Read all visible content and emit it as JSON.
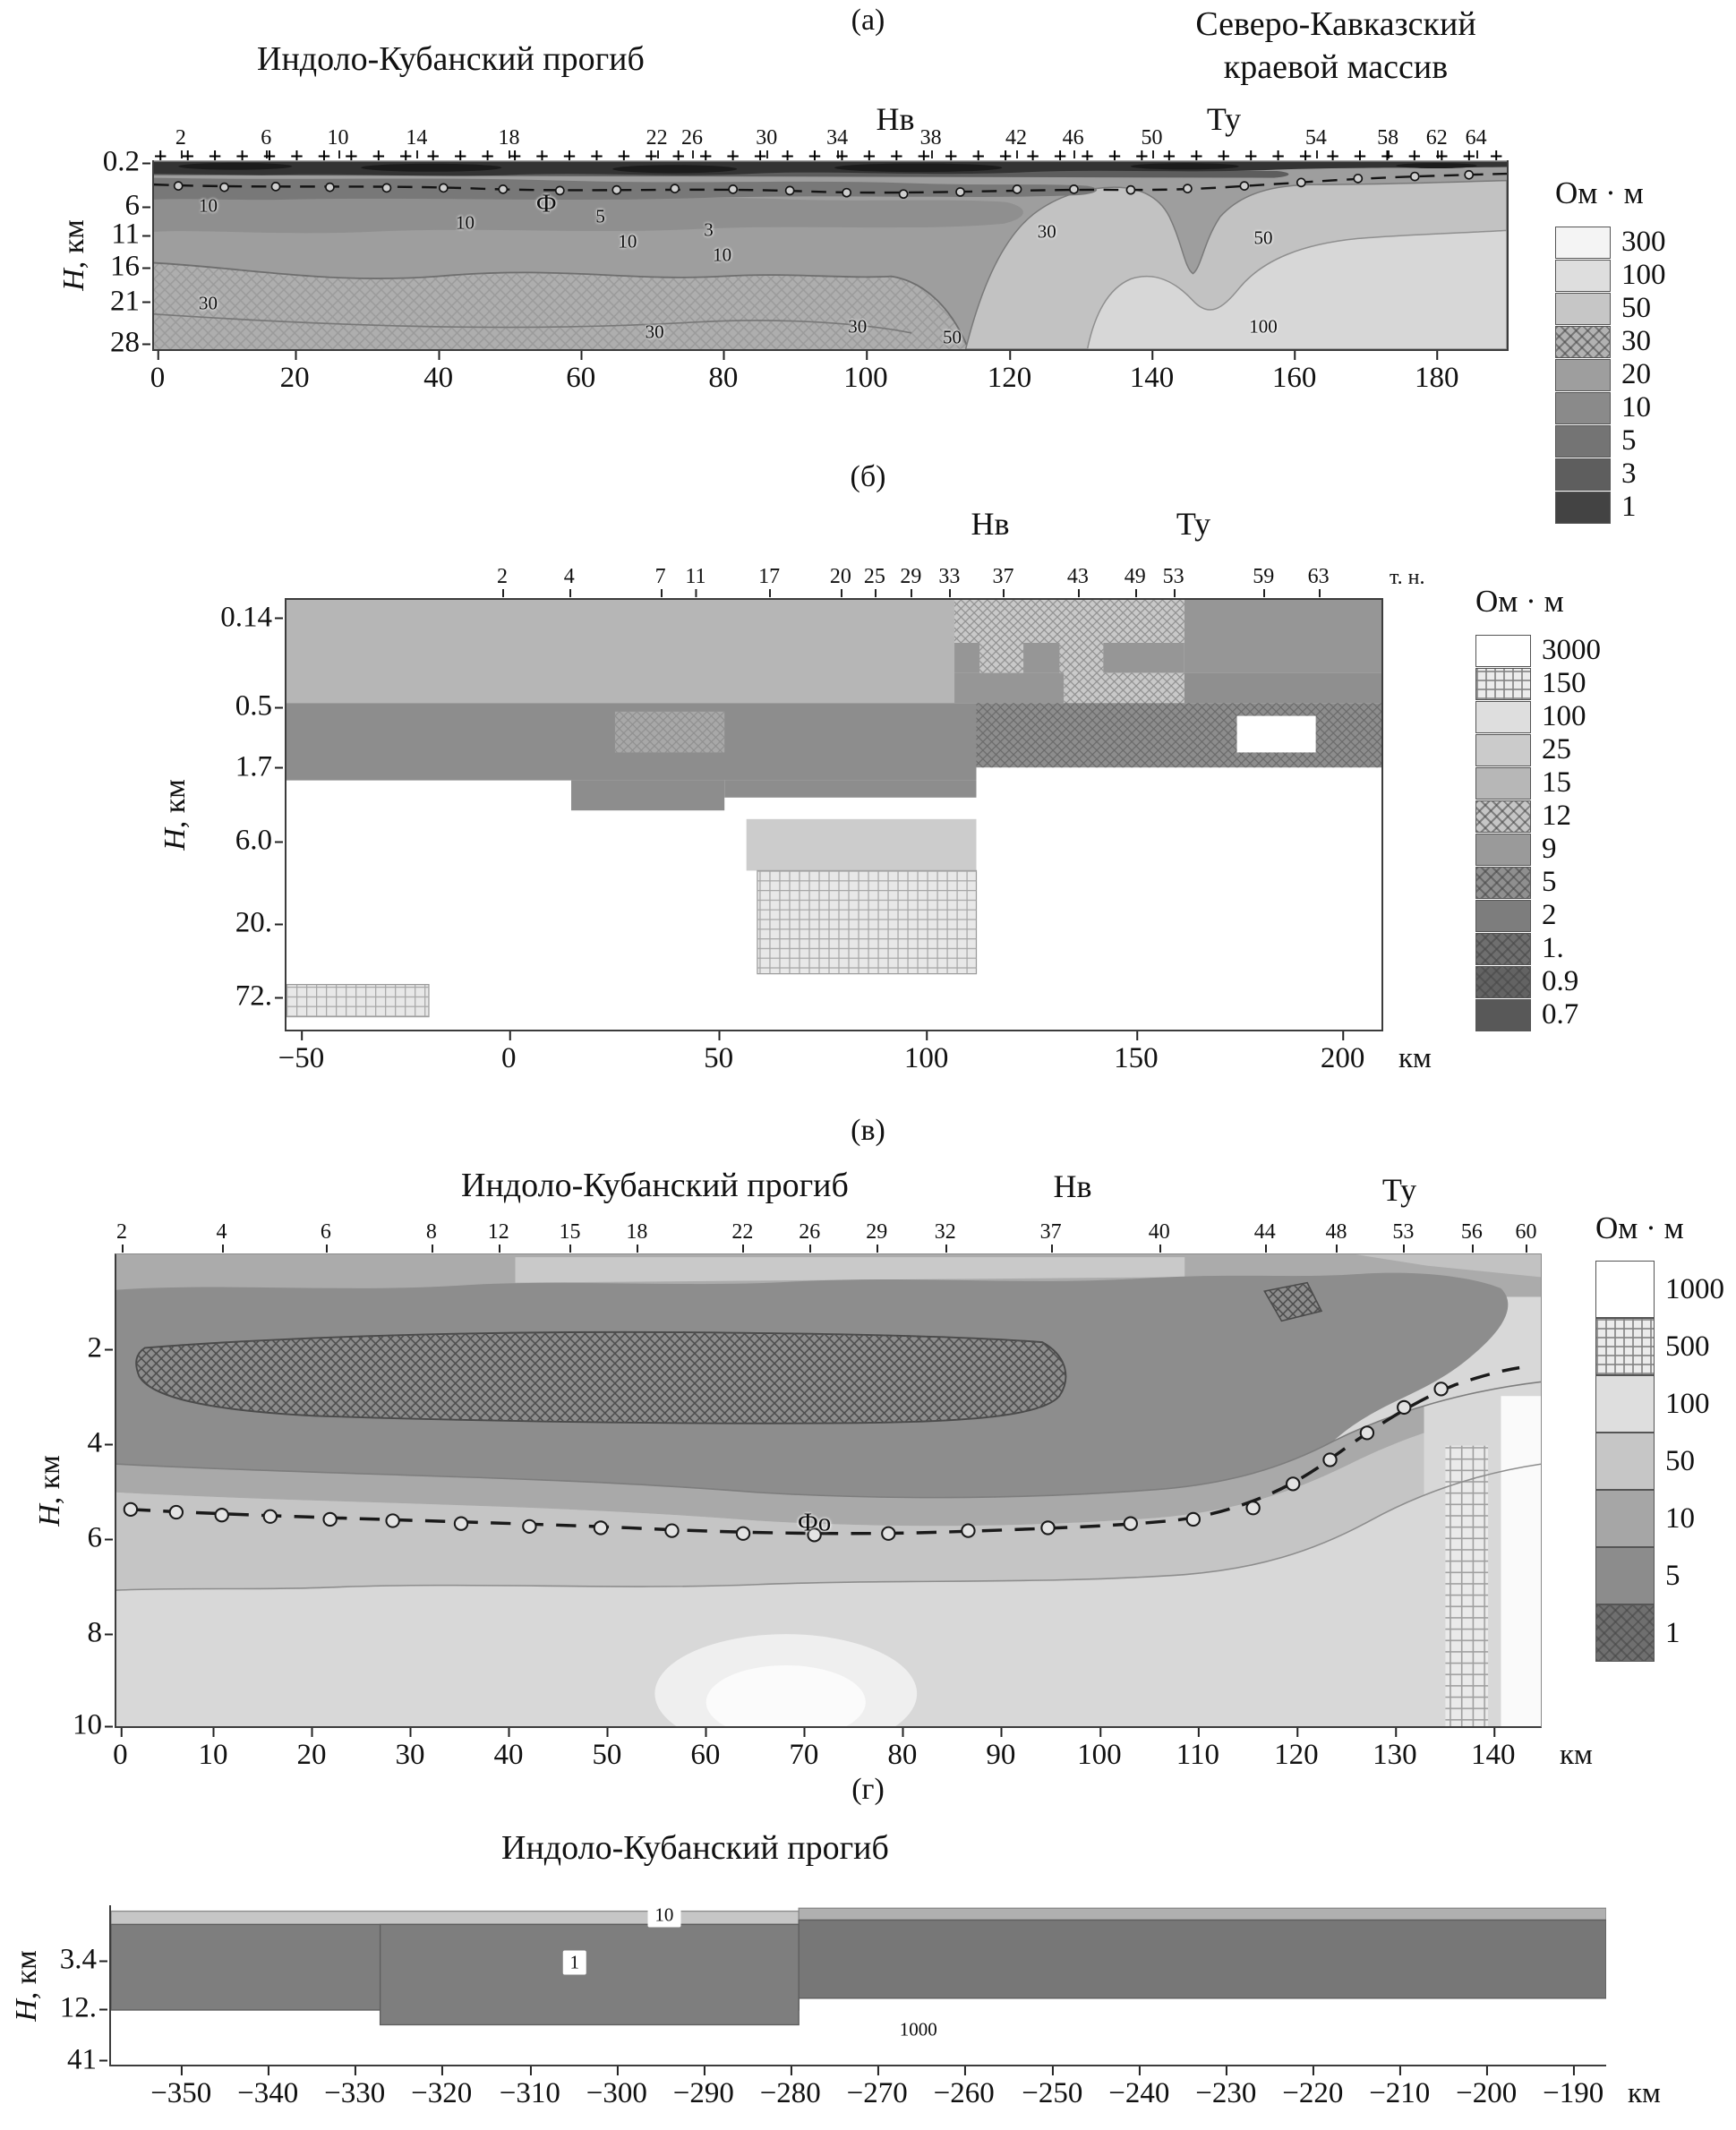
{
  "unit_label": "Ом · м",
  "chart_data": [
    {
      "id": "panel-a",
      "type": "heatmap",
      "tag": "(а)",
      "title_left": "Индоло-Кубанский прогиб",
      "title_right_l1": "Северо-Кавказский",
      "title_right_l2": "краевой массив",
      "marker_nv": "Нв",
      "marker_tu": "Ту",
      "ylabel_h": "H",
      "ylabel_unit": ", км",
      "legend_title": "Ом · м",
      "xlim_km": [
        0,
        190
      ],
      "ylim_km": [
        0.2,
        28
      ],
      "plus_row": "++++++++++++++++++++++++++++++++++++++++++++++++++++++++++++",
      "yticks": [
        {
          "label": "0.2",
          "pos": 1
        },
        {
          "label": "6",
          "pos": 24
        },
        {
          "label": "11",
          "pos": 39
        },
        {
          "label": "16",
          "pos": 56
        },
        {
          "label": "21",
          "pos": 74
        },
        {
          "label": "28",
          "pos": 96
        }
      ],
      "xticks": [
        {
          "label": "0",
          "pos": 0.4
        },
        {
          "label": "20",
          "pos": 10.5
        },
        {
          "label": "40",
          "pos": 21.1
        },
        {
          "label": "60",
          "pos": 31.6
        },
        {
          "label": "80",
          "pos": 42.1
        },
        {
          "label": "100",
          "pos": 52.6
        },
        {
          "label": "120",
          "pos": 63.2
        },
        {
          "label": "140",
          "pos": 73.7
        },
        {
          "label": "160",
          "pos": 84.2
        },
        {
          "label": "180",
          "pos": 94.7
        }
      ],
      "stations": [
        {
          "label": "2",
          "pos": 2.1
        },
        {
          "label": "6",
          "pos": 8.4
        },
        {
          "label": "10",
          "pos": 13.7
        },
        {
          "label": "14",
          "pos": 19.5
        },
        {
          "label": "18",
          "pos": 26.3
        },
        {
          "label": "22",
          "pos": 37.2
        },
        {
          "label": "26",
          "pos": 39.8
        },
        {
          "label": "30",
          "pos": 45.3
        },
        {
          "label": "34",
          "pos": 50.5
        },
        {
          "label": "38",
          "pos": 57.4
        },
        {
          "label": "42",
          "pos": 63.7
        },
        {
          "label": "46",
          "pos": 67.9
        },
        {
          "label": "50",
          "pos": 73.7
        },
        {
          "label": "54",
          "pos": 85.8
        },
        {
          "label": "58",
          "pos": 91.1
        },
        {
          "label": "62",
          "pos": 94.7
        },
        {
          "label": "64",
          "pos": 97.6
        }
      ],
      "legend": [
        {
          "label": "300",
          "color": "#f4f4f4"
        },
        {
          "label": "100",
          "color": "#dedede"
        },
        {
          "label": "50",
          "color": "#c6c6c6"
        },
        {
          "label": "30",
          "color": "#b2b2b2",
          "hatch": "cross"
        },
        {
          "label": "20",
          "color": "#9e9e9e"
        },
        {
          "label": "10",
          "color": "#8a8a8a"
        },
        {
          "label": "5",
          "color": "#747474"
        },
        {
          "label": "3",
          "color": "#5e5e5e"
        },
        {
          "label": "1",
          "color": "#434343"
        }
      ],
      "annotations": [
        {
          "t": "10",
          "x": 4,
          "y": 24
        },
        {
          "t": "10",
          "x": 23,
          "y": 33
        },
        {
          "t": "Ф",
          "x": 29,
          "y": 23,
          "big": true
        },
        {
          "t": "5",
          "x": 33,
          "y": 30
        },
        {
          "t": "3",
          "x": 41,
          "y": 37
        },
        {
          "t": "10",
          "x": 35,
          "y": 43
        },
        {
          "t": "10",
          "x": 42,
          "y": 50
        },
        {
          "t": "30",
          "x": 4,
          "y": 76
        },
        {
          "t": "30",
          "x": 37,
          "y": 91
        },
        {
          "t": "30",
          "x": 52,
          "y": 88
        },
        {
          "t": "30",
          "x": 66,
          "y": 38
        },
        {
          "t": "50",
          "x": 82,
          "y": 41
        },
        {
          "t": "50",
          "x": 59,
          "y": 94
        },
        {
          "t": "100",
          "x": 82,
          "y": 88
        }
      ]
    },
    {
      "id": "panel-b",
      "type": "heatmap",
      "tag": "(б)",
      "marker_nv": "Нв",
      "marker_tu": "Ту",
      "ylabel_h": "H",
      "ylabel_unit": ", км",
      "legend_title": "Ом · м",
      "station_unit": "т. н.",
      "x_unit": "км",
      "xlim_km": [
        -55,
        212
      ],
      "y_scale": "irregular-depth",
      "yticks": [
        {
          "label": "0.14",
          "pos": 4.5
        },
        {
          "label": "0.5",
          "pos": 25
        },
        {
          "label": "1.7",
          "pos": 39
        },
        {
          "label": "6.0",
          "pos": 56
        },
        {
          "label": "20.",
          "pos": 75
        },
        {
          "label": "72.",
          "pos": 92
        }
      ],
      "xticks": [
        {
          "label": "−50",
          "pos": 1.5
        },
        {
          "label": "0",
          "pos": 20.4
        },
        {
          "label": "50",
          "pos": 39.5
        },
        {
          "label": "100",
          "pos": 58.4
        },
        {
          "label": "150",
          "pos": 77.5
        },
        {
          "label": "200",
          "pos": 96.3
        }
      ],
      "stations": [
        {
          "label": "2",
          "pos": 19.8
        },
        {
          "label": "4",
          "pos": 25.9
        },
        {
          "label": "7",
          "pos": 34.2
        },
        {
          "label": "11",
          "pos": 37.4
        },
        {
          "label": "17",
          "pos": 44.1
        },
        {
          "label": "20",
          "pos": 50.6
        },
        {
          "label": "25",
          "pos": 53.7
        },
        {
          "label": "29",
          "pos": 57
        },
        {
          "label": "33",
          "pos": 60.5
        },
        {
          "label": "37",
          "pos": 65.4
        },
        {
          "label": "43",
          "pos": 72.2
        },
        {
          "label": "49",
          "pos": 77.4
        },
        {
          "label": "53",
          "pos": 80.9
        },
        {
          "label": "59",
          "pos": 89.1
        },
        {
          "label": "63",
          "pos": 94.1
        }
      ],
      "legend": [
        {
          "label": "3000",
          "color": "#ffffff"
        },
        {
          "label": "150",
          "color": "#ececec",
          "hatch": "grid"
        },
        {
          "label": "100",
          "color": "#dedede"
        },
        {
          "label": "25",
          "color": "#cbcbcb"
        },
        {
          "label": "15",
          "color": "#b7b7b7"
        },
        {
          "label": "12",
          "color": "#c6c6c6",
          "hatch": "cross"
        },
        {
          "label": "9",
          "color": "#9a9a9a"
        },
        {
          "label": "5",
          "color": "#8f8f8f",
          "hatch": "cross"
        },
        {
          "label": "2",
          "color": "#7d7d7d"
        },
        {
          "label": "1.",
          "color": "#6f6f6f",
          "hatch": "cross"
        },
        {
          "label": "0.9",
          "color": "#636363",
          "hatch": "cross"
        },
        {
          "label": "0.7",
          "color": "#585858"
        }
      ],
      "annotations": []
    },
    {
      "id": "panel-c",
      "type": "heatmap",
      "tag": "(в)",
      "title_left": "Индоло-Кубанский прогиб",
      "marker_nv": "Нв",
      "marker_tu": "Ту",
      "ylabel_h": "H",
      "ylabel_unit": ", км",
      "legend_title": "Ом · м",
      "x_unit": "км",
      "xlim_km": [
        0,
        147
      ],
      "ylim_km": [
        0,
        10
      ],
      "yticks": [
        {
          "label": "2",
          "pos": 20
        },
        {
          "label": "4",
          "pos": 40
        },
        {
          "label": "6",
          "pos": 60
        },
        {
          "label": "8",
          "pos": 80
        },
        {
          "label": "10",
          "pos": 99.5
        }
      ],
      "xticks": [
        {
          "label": "0",
          "pos": 0.4
        },
        {
          "label": "10",
          "pos": 6.9
        },
        {
          "label": "20",
          "pos": 13.8
        },
        {
          "label": "30",
          "pos": 20.7
        },
        {
          "label": "40",
          "pos": 27.6
        },
        {
          "label": "50",
          "pos": 34.5
        },
        {
          "label": "60",
          "pos": 41.4
        },
        {
          "label": "70",
          "pos": 48.3
        },
        {
          "label": "80",
          "pos": 55.2
        },
        {
          "label": "90",
          "pos": 62.1
        },
        {
          "label": "100",
          "pos": 69
        },
        {
          "label": "110",
          "pos": 75.9
        },
        {
          "label": "120",
          "pos": 82.8
        },
        {
          "label": "130",
          "pos": 89.7
        },
        {
          "label": "140",
          "pos": 96.6
        }
      ],
      "stations": [
        {
          "label": "2",
          "pos": 0.5
        },
        {
          "label": "4",
          "pos": 7.5
        },
        {
          "label": "6",
          "pos": 14.8
        },
        {
          "label": "8",
          "pos": 22.2
        },
        {
          "label": "12",
          "pos": 26.9
        },
        {
          "label": "15",
          "pos": 31.9
        },
        {
          "label": "18",
          "pos": 36.6
        },
        {
          "label": "22",
          "pos": 44
        },
        {
          "label": "26",
          "pos": 48.7
        },
        {
          "label": "29",
          "pos": 53.4
        },
        {
          "label": "32",
          "pos": 58.2
        },
        {
          "label": "37",
          "pos": 65.6
        },
        {
          "label": "40",
          "pos": 73.2
        },
        {
          "label": "44",
          "pos": 80.6
        },
        {
          "label": "48",
          "pos": 85.6
        },
        {
          "label": "53",
          "pos": 90.3
        },
        {
          "label": "56",
          "pos": 95.1
        },
        {
          "label": "60",
          "pos": 98.9
        }
      ],
      "legend": [
        {
          "label": "1000",
          "color": "#ffffff"
        },
        {
          "label": "500",
          "color": "#ececec",
          "hatch": "grid"
        },
        {
          "label": "100",
          "color": "#dedede"
        },
        {
          "label": "50",
          "color": "#c6c6c6"
        },
        {
          "label": "10",
          "color": "#a6a6a6"
        },
        {
          "label": "5",
          "color": "#8c8c8c"
        },
        {
          "label": "1",
          "color": "#6f6f6f",
          "hatch": "cross"
        }
      ],
      "annotations": [
        {
          "t": "Фо",
          "x": 49,
          "y": 57,
          "big": true
        }
      ]
    },
    {
      "id": "panel-d",
      "type": "heatmap",
      "tag": "(г)",
      "title_left": "Индоло-Кубанский прогиб",
      "ylabel_h": "H",
      "ylabel_unit": ", км",
      "x_unit": "км",
      "xlim_km": [
        -358,
        -186
      ],
      "yticks": [
        {
          "label": "3.4",
          "pos": 34
        },
        {
          "label": "12.",
          "pos": 64
        },
        {
          "label": "41",
          "pos": 96
        }
      ],
      "xticks": [
        {
          "label": "−350",
          "pos": 4.8
        },
        {
          "label": "−340",
          "pos": 10.6
        },
        {
          "label": "−330",
          "pos": 16.4
        },
        {
          "label": "−320",
          "pos": 22.2
        },
        {
          "label": "−310",
          "pos": 28.1
        },
        {
          "label": "−300",
          "pos": 33.9
        },
        {
          "label": "−290",
          "pos": 39.7
        },
        {
          "label": "−280",
          "pos": 45.5
        },
        {
          "label": "−270",
          "pos": 51.3
        },
        {
          "label": "−260",
          "pos": 57.1
        },
        {
          "label": "−250",
          "pos": 63
        },
        {
          "label": "−240",
          "pos": 68.8
        },
        {
          "label": "−230",
          "pos": 74.6
        },
        {
          "label": "−220",
          "pos": 80.4
        },
        {
          "label": "−210",
          "pos": 86.2
        },
        {
          "label": "−200",
          "pos": 92
        },
        {
          "label": "−190",
          "pos": 97.8
        }
      ],
      "annotations": [
        {
          "t": "10",
          "x": 37,
          "y": 6,
          "bg": true
        },
        {
          "t": "1",
          "x": 31,
          "y": 36,
          "bg": true
        },
        {
          "t": "1000",
          "x": 54,
          "y": 78
        }
      ]
    }
  ]
}
